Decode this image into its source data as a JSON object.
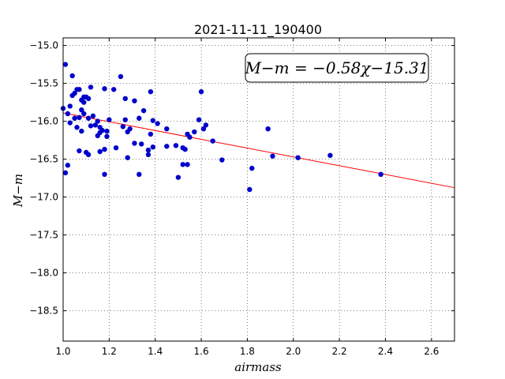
{
  "chart_data": {
    "type": "scatter",
    "title": "2021-11-11_190400",
    "xlabel": "airmass",
    "ylabel": "M−m",
    "xlim": [
      1.0,
      2.7
    ],
    "ylim": [
      -18.9,
      -14.9
    ],
    "y_inverted": true,
    "grid": true,
    "xticks": [
      1.0,
      1.2,
      1.4,
      1.6,
      1.8,
      2.0,
      2.2,
      2.4,
      2.6
    ],
    "xtick_labels": [
      "1.0",
      "1.2",
      "1.4",
      "1.6",
      "1.8",
      "2.0",
      "2.2",
      "2.4",
      "2.6"
    ],
    "yticks": [
      -15.0,
      -15.5,
      -16.0,
      -16.5,
      -17.0,
      -17.5,
      -18.0,
      -18.5
    ],
    "ytick_labels": [
      "−15.0",
      "−15.5",
      "−16.0",
      "−16.5",
      "−17.0",
      "−17.5",
      "−18.0",
      "−18.5"
    ],
    "annotation": "M−m = −0.58χ−15.31",
    "fit": {
      "slope": -0.58,
      "intercept": -15.31,
      "color": "#ff0000"
    },
    "marker_color": "#0000cc",
    "points": [
      [
        1.0,
        -15.83
      ],
      [
        1.01,
        -15.25
      ],
      [
        1.01,
        -16.68
      ],
      [
        1.02,
        -16.58
      ],
      [
        1.02,
        -15.9
      ],
      [
        1.03,
        -16.02
      ],
      [
        1.03,
        -15.8
      ],
      [
        1.04,
        -15.4
      ],
      [
        1.04,
        -15.66
      ],
      [
        1.05,
        -15.63
      ],
      [
        1.05,
        -15.96
      ],
      [
        1.06,
        -15.58
      ],
      [
        1.06,
        -16.08
      ],
      [
        1.07,
        -15.95
      ],
      [
        1.07,
        -15.58
      ],
      [
        1.07,
        -16.39
      ],
      [
        1.08,
        -15.85
      ],
      [
        1.08,
        -16.13
      ],
      [
        1.08,
        -15.72
      ],
      [
        1.09,
        -15.75
      ],
      [
        1.09,
        -15.68
      ],
      [
        1.09,
        -15.9
      ],
      [
        1.1,
        -16.41
      ],
      [
        1.1,
        -15.68
      ],
      [
        1.11,
        -16.44
      ],
      [
        1.11,
        -15.96
      ],
      [
        1.11,
        -15.7
      ],
      [
        1.12,
        -16.06
      ],
      [
        1.12,
        -15.55
      ],
      [
        1.13,
        -15.93
      ],
      [
        1.14,
        -16.05
      ],
      [
        1.15,
        -16.0
      ],
      [
        1.15,
        -16.19
      ],
      [
        1.16,
        -16.15
      ],
      [
        1.16,
        -16.08
      ],
      [
        1.16,
        -16.4
      ],
      [
        1.17,
        -16.12
      ],
      [
        1.18,
        -16.37
      ],
      [
        1.18,
        -15.57
      ],
      [
        1.18,
        -16.7
      ],
      [
        1.19,
        -16.13
      ],
      [
        1.19,
        -16.2
      ],
      [
        1.2,
        -15.98
      ],
      [
        1.22,
        -15.58
      ],
      [
        1.23,
        -16.35
      ],
      [
        1.25,
        -15.41
      ],
      [
        1.26,
        -16.07
      ],
      [
        1.27,
        -15.98
      ],
      [
        1.27,
        -15.7
      ],
      [
        1.28,
        -16.48
      ],
      [
        1.28,
        -16.14
      ],
      [
        1.29,
        -16.1
      ],
      [
        1.31,
        -15.73
      ],
      [
        1.31,
        -16.29
      ],
      [
        1.33,
        -16.7
      ],
      [
        1.33,
        -15.96
      ],
      [
        1.34,
        -16.3
      ],
      [
        1.35,
        -15.86
      ],
      [
        1.37,
        -16.38
      ],
      [
        1.37,
        -16.44
      ],
      [
        1.38,
        -16.17
      ],
      [
        1.38,
        -15.61
      ],
      [
        1.39,
        -16.34
      ],
      [
        1.39,
        -15.99
      ],
      [
        1.41,
        -16.03
      ],
      [
        1.45,
        -16.1
      ],
      [
        1.45,
        -16.33
      ],
      [
        1.49,
        -16.32
      ],
      [
        1.5,
        -16.74
      ],
      [
        1.52,
        -16.57
      ],
      [
        1.52,
        -16.35
      ],
      [
        1.53,
        -16.37
      ],
      [
        1.54,
        -16.17
      ],
      [
        1.54,
        -16.57
      ],
      [
        1.55,
        -16.21
      ],
      [
        1.57,
        -16.14
      ],
      [
        1.59,
        -15.98
      ],
      [
        1.6,
        -15.61
      ],
      [
        1.61,
        -16.1
      ],
      [
        1.62,
        -16.05
      ],
      [
        1.65,
        -16.26
      ],
      [
        1.69,
        -16.51
      ],
      [
        1.81,
        -16.9
      ],
      [
        1.82,
        -16.62
      ],
      [
        1.89,
        -16.1
      ],
      [
        1.91,
        -16.46
      ],
      [
        2.02,
        -16.48
      ],
      [
        2.16,
        -16.45
      ],
      [
        2.38,
        -16.7
      ]
    ]
  }
}
